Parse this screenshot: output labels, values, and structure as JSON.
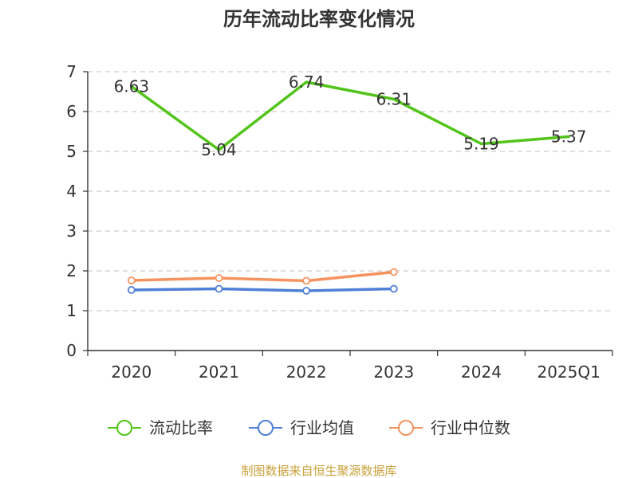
{
  "chart_data": {
    "type": "line",
    "title": "历年流动比率变化情况",
    "categories": [
      "2020",
      "2021",
      "2022",
      "2023",
      "2024",
      "2025Q1"
    ],
    "ylim": [
      0,
      7
    ],
    "yticks": [
      "0",
      "1",
      "2",
      "3",
      "4",
      "5",
      "6",
      "7"
    ],
    "grid": true,
    "legend_position": "bottom",
    "series": [
      {
        "name": "流动比率",
        "color": "#52c41a",
        "values": [
          6.63,
          5.04,
          6.74,
          6.31,
          5.19,
          5.37
        ],
        "labels": [
          "6.63",
          "5.04",
          "6.74",
          "6.31",
          "5.19",
          "5.37"
        ],
        "markers": false
      },
      {
        "name": "行业均值",
        "color": "#4f7fd6",
        "values": [
          1.52,
          1.55,
          1.5,
          1.55,
          null,
          null
        ],
        "markers": true
      },
      {
        "name": "行业中位数",
        "color": "#f5935f",
        "values": [
          1.76,
          1.82,
          1.75,
          1.97,
          null,
          null
        ],
        "markers": true
      }
    ],
    "source": "制图数据来自恒生聚源数据库",
    "source_color": "#c8a13a"
  }
}
